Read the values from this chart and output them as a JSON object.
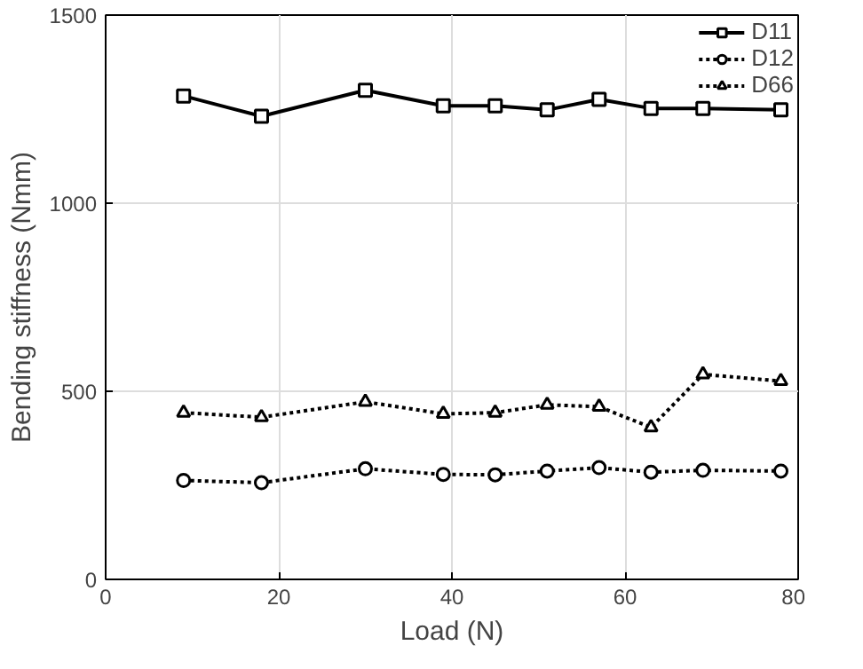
{
  "chart_data": {
    "type": "line",
    "xlabel": "Load (N)",
    "ylabel": "Bending stiffness (Nmm)",
    "x": [
      9,
      18,
      30,
      39,
      45,
      51,
      57,
      63,
      69,
      78
    ],
    "series": [
      {
        "name": "D11",
        "color": "#000000",
        "values": [
          1285,
          1231,
          1300,
          1259,
          1259,
          1248,
          1276,
          1252,
          1252,
          1248
        ],
        "marker": "square",
        "line_style": "solid"
      },
      {
        "name": "D12",
        "color": "#000000",
        "values": [
          263,
          257,
          294,
          279,
          278,
          288,
          297,
          285,
          290,
          288
        ],
        "marker": "circle",
        "line_style": "dotted"
      },
      {
        "name": "D66",
        "color": "#000000",
        "values": [
          443,
          431,
          472,
          440,
          443,
          464,
          459,
          404,
          545,
          527
        ],
        "marker": "triangle",
        "line_style": "dotted"
      }
    ],
    "xlim": [
      0,
      80
    ],
    "ylim": [
      0,
      1500
    ],
    "xticks": [
      0,
      20,
      40,
      60,
      80
    ],
    "yticks": [
      0,
      500,
      1000,
      1500
    ],
    "grid": true,
    "legend": "top right"
  }
}
